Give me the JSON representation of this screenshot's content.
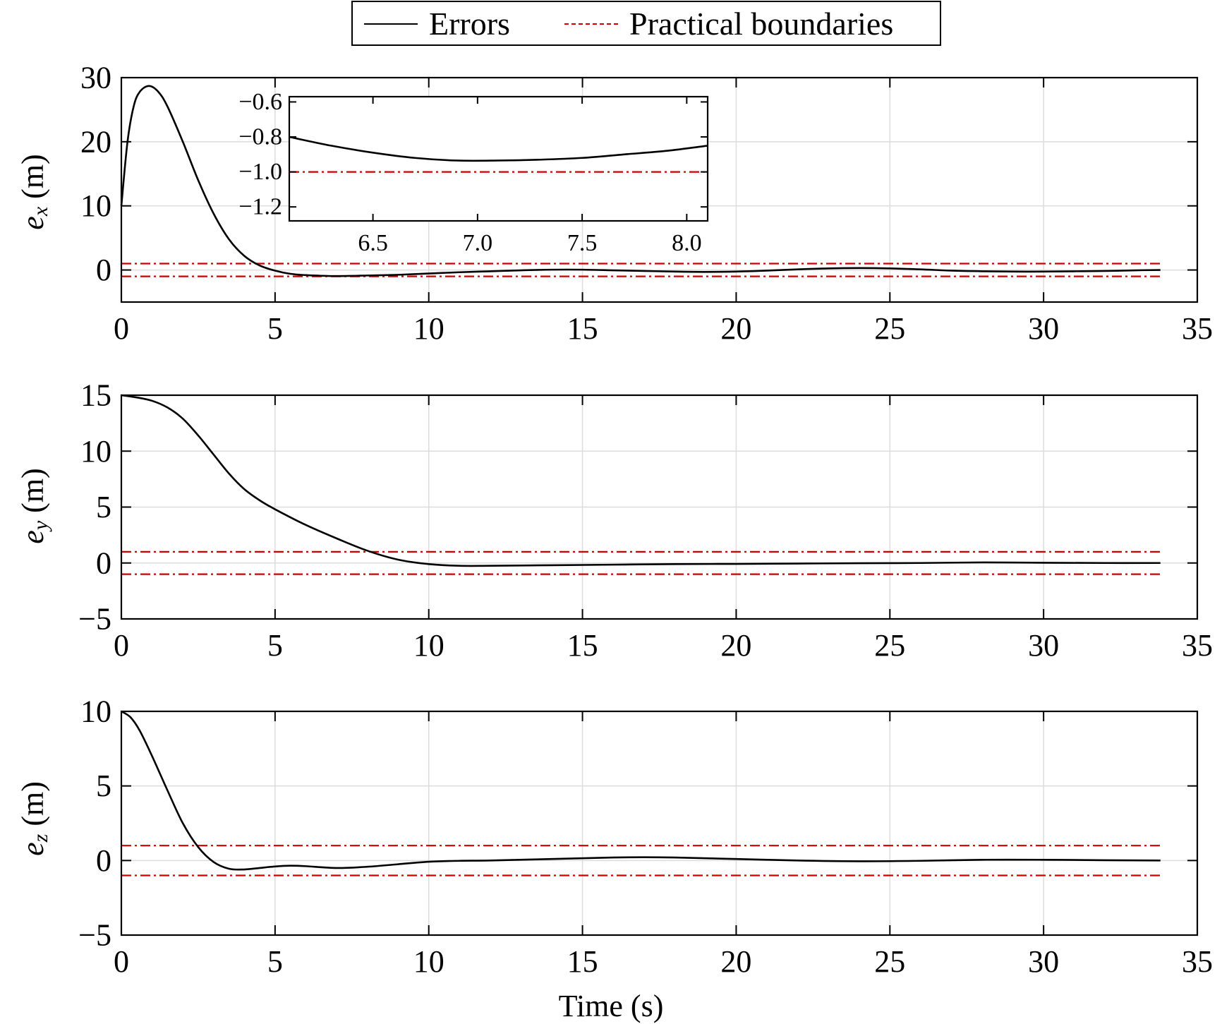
{
  "legend": {
    "errors_label": "Errors",
    "boundaries_label": "Practical boundaries",
    "errors_color": "#000000",
    "boundaries_color": "#cc0000",
    "placement": "top-center"
  },
  "xlabel": "Time (s)",
  "ylabel_symbol": "e",
  "ylabel_unit": " (m)",
  "chart_data": [
    {
      "type": "line",
      "name": "ex",
      "ylabel_sub": "x",
      "xlim": [
        0,
        35
      ],
      "ylim": [
        -5,
        30
      ],
      "xticks": [
        0,
        5,
        10,
        15,
        20,
        25,
        30,
        35
      ],
      "yticks": [
        0,
        10,
        20,
        30
      ],
      "grid": true,
      "boundaries": [
        1,
        -1
      ],
      "x": [
        0,
        0.2,
        0.4,
        0.6,
        0.9,
        1.2,
        1.5,
        2.0,
        2.5,
        3.0,
        3.5,
        4.0,
        4.5,
        5.0,
        5.5,
        6.0,
        6.5,
        7.0,
        7.5,
        8.0,
        9.0,
        10.0,
        11.0,
        12.0,
        13.0,
        14.0,
        15.0,
        16.0,
        17.0,
        18.0,
        19.0,
        20.0,
        21.0,
        22.0,
        23.0,
        24.0,
        25.0,
        26.0,
        27.0,
        28.0,
        29.0,
        30.0,
        31.0,
        32.0,
        33.0,
        33.8
      ],
      "y": [
        10,
        20,
        25.5,
        27.8,
        28.7,
        27.8,
        25.5,
        20.0,
        14.0,
        8.8,
        4.8,
        2.2,
        0.7,
        -0.1,
        -0.6,
        -0.8,
        -0.9,
        -0.95,
        -0.92,
        -0.86,
        -0.75,
        -0.55,
        -0.35,
        -0.2,
        -0.05,
        0.05,
        0.05,
        -0.05,
        -0.15,
        -0.25,
        -0.3,
        -0.25,
        -0.1,
        0.1,
        0.25,
        0.3,
        0.25,
        0.1,
        -0.1,
        -0.2,
        -0.25,
        -0.25,
        -0.2,
        -0.15,
        -0.05,
        0.0
      ]
    },
    {
      "type": "line",
      "name": "ey",
      "ylabel_sub": "y",
      "xlim": [
        0,
        35
      ],
      "ylim": [
        -5,
        15
      ],
      "xticks": [
        0,
        5,
        10,
        15,
        20,
        25,
        30,
        35
      ],
      "yticks": [
        -5,
        0,
        5,
        10,
        15
      ],
      "grid": true,
      "boundaries": [
        1,
        -1
      ],
      "x": [
        0,
        0.5,
        1.0,
        1.5,
        2.0,
        2.5,
        3.0,
        3.5,
        4.0,
        4.5,
        5.0,
        6.0,
        7.0,
        8.0,
        9.0,
        10.0,
        11.0,
        12.0,
        14.0,
        16.0,
        18.0,
        20.0,
        22.0,
        24.0,
        26.0,
        28.0,
        30.0,
        32.0,
        33.8
      ],
      "y": [
        15,
        14.8,
        14.5,
        13.9,
        12.9,
        11.4,
        9.7,
        8.0,
        6.6,
        5.6,
        4.8,
        3.4,
        2.2,
        1.1,
        0.3,
        -0.1,
        -0.25,
        -0.25,
        -0.2,
        -0.15,
        -0.1,
        -0.08,
        -0.05,
        -0.02,
        0.0,
        0.05,
        0.02,
        0.0,
        0.0
      ]
    },
    {
      "type": "line",
      "name": "ez",
      "ylabel_sub": "z",
      "xlim": [
        0,
        35
      ],
      "ylim": [
        -5,
        10
      ],
      "xticks": [
        0,
        5,
        10,
        15,
        20,
        25,
        30,
        35
      ],
      "yticks": [
        -5,
        0,
        5,
        10
      ],
      "grid": true,
      "boundaries": [
        1,
        -1
      ],
      "x": [
        0,
        0.3,
        0.6,
        1.0,
        1.5,
        2.0,
        2.5,
        3.0,
        3.5,
        4.0,
        4.5,
        5.0,
        5.5,
        6.0,
        7.0,
        8.0,
        9.0,
        10.0,
        11.0,
        12.0,
        14.0,
        16.0,
        17.0,
        18.0,
        20.0,
        22.0,
        24.0,
        26.0,
        28.0,
        30.0,
        32.0,
        33.8
      ],
      "y": [
        10,
        9.6,
        8.7,
        7.0,
        4.7,
        2.5,
        0.9,
        -0.1,
        -0.55,
        -0.6,
        -0.5,
        -0.4,
        -0.35,
        -0.38,
        -0.5,
        -0.42,
        -0.25,
        -0.08,
        -0.02,
        0.0,
        0.1,
        0.2,
        0.22,
        0.2,
        0.1,
        0.0,
        -0.05,
        -0.02,
        0.05,
        0.05,
        0.02,
        0.0
      ]
    },
    {
      "type": "line",
      "name": "ex-inset",
      "xlim": [
        6.1,
        8.1
      ],
      "ylim": [
        -1.28,
        -0.57
      ],
      "xticks": [
        6.5,
        7.0,
        7.5,
        8.0
      ],
      "xtick_labels": [
        "6.5",
        "7.0",
        "7.5",
        "8.0"
      ],
      "yticks": [
        -1.2,
        -1.0,
        -0.8,
        -0.6
      ],
      "ytick_labels": [
        "−1.2",
        "−1.0",
        "−0.8",
        "−0.6"
      ],
      "grid": false,
      "boundaries": [
        -1
      ],
      "x": [
        6.1,
        6.3,
        6.5,
        6.7,
        6.9,
        7.1,
        7.3,
        7.5,
        7.7,
        7.9,
        8.1
      ],
      "y": [
        -0.8,
        -0.85,
        -0.89,
        -0.92,
        -0.935,
        -0.935,
        -0.93,
        -0.92,
        -0.9,
        -0.88,
        -0.85
      ]
    }
  ]
}
